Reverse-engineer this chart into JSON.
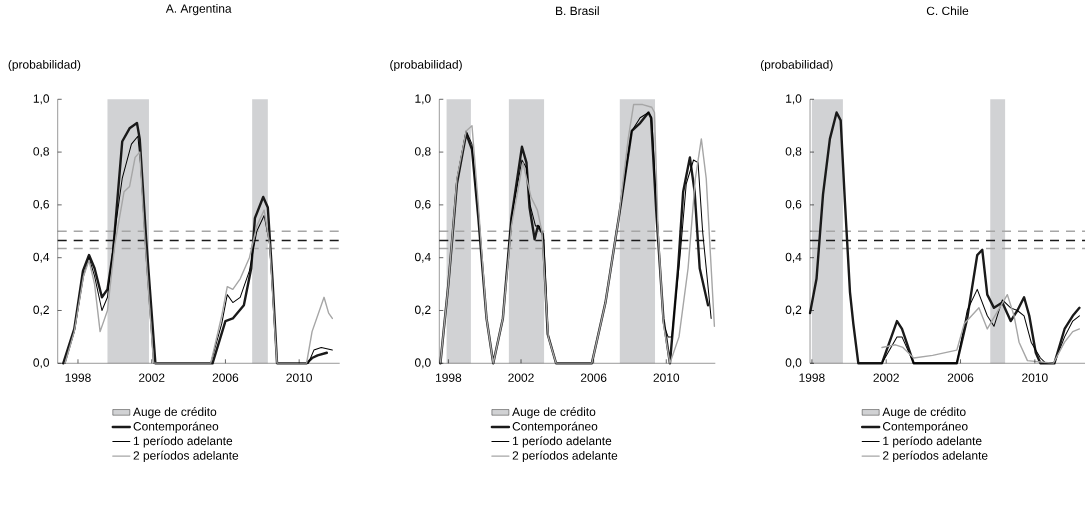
{
  "chart_data": [
    {
      "type": "line",
      "title": "A. Argentina",
      "ylabel": "(probabilidad)",
      "legend": "bottom",
      "xlim": [
        1996.9,
        2012.2
      ],
      "xticks": [
        1998,
        2002,
        2006,
        2010
      ],
      "ylim": [
        0,
        1
      ],
      "yticks": [
        {
          "value": 0,
          "label": "0,0"
        },
        {
          "value": 0.2,
          "label": "0,2"
        },
        {
          "value": 0.4,
          "label": "0,4"
        },
        {
          "value": 0.6,
          "label": "0,6"
        },
        {
          "value": 0.8,
          "label": "0,8"
        },
        {
          "value": 1,
          "label": "1,0"
        }
      ],
      "bands": [
        {
          "axis": "x",
          "from": 1999.6,
          "to": 2001.85,
          "label": "Auge de crédito",
          "color": "#d1d2d4"
        },
        {
          "axis": "x",
          "from": 2007.45,
          "to": 2008.3,
          "color": "#d1d2d4"
        }
      ],
      "ref_lines": [
        {
          "axis": "y",
          "value": 0.5,
          "color": "#a6a6a6",
          "line_style": "dashed"
        },
        {
          "axis": "y",
          "value": 0.465,
          "color": "#1a1a1a",
          "line_style": "dashed"
        },
        {
          "axis": "y",
          "value": 0.435,
          "color": "#a6a6a6",
          "line_style": "dashed"
        }
      ],
      "series": [
        {
          "name": "Contemporáneo",
          "color": "#1a1a1a",
          "x": [
            1997.2,
            1997.8,
            1998.27,
            1998.6,
            1998.9,
            1999.3,
            1999.6,
            1999.9,
            2000.4,
            2000.8,
            2001.2,
            2001.35,
            2001.7,
            2002.2,
            2003,
            2004,
            2005.3,
            2006.0,
            2006.4,
            2007.0,
            2007.4,
            2007.6,
            2008.05,
            2008.3,
            2008.55,
            2008.8,
            2009.5,
            2010.4,
            2010.7,
            2011.0,
            2011.5
          ],
          "values": [
            0,
            0.13,
            0.35,
            0.41,
            0.36,
            0.25,
            0.28,
            0.42,
            0.84,
            0.89,
            0.91,
            0.85,
            0.47,
            0,
            0,
            0,
            0,
            0.16,
            0.17,
            0.22,
            0.36,
            0.55,
            0.63,
            0.59,
            0.32,
            0,
            0,
            0,
            0.02,
            0.03,
            0.04
          ]
        },
        {
          "name": "1 período adelante",
          "color": "#000000",
          "x": [
            1997.3,
            1997.8,
            1998.3,
            1998.6,
            1998.9,
            1999.3,
            1999.6,
            2000.0,
            2000.4,
            2000.9,
            2001.25,
            2001.4,
            2001.7,
            2002.1,
            2005.2,
            2005.8,
            2006.1,
            2006.4,
            2006.8,
            2007.3,
            2007.7,
            2008.1,
            2008.4,
            2008.7,
            2008.8,
            2010.5,
            2010.8,
            2011.2,
            2011.8
          ],
          "values": [
            0,
            0.12,
            0.33,
            0.4,
            0.33,
            0.2,
            0.25,
            0.5,
            0.7,
            0.83,
            0.86,
            0.75,
            0.4,
            0,
            0,
            0.15,
            0.26,
            0.23,
            0.25,
            0.35,
            0.5,
            0.56,
            0.45,
            0.1,
            0,
            0,
            0.05,
            0.06,
            0.05
          ]
        },
        {
          "name": "2 períodos adelante",
          "color": "#a6a6a6",
          "x": [
            1997.3,
            1997.8,
            1998.3,
            1998.6,
            1998.9,
            1999.2,
            1999.6,
            2000.0,
            2000.5,
            2000.8,
            2001.1,
            2001.35,
            2001.6,
            2002.1,
            2005.2,
            2005.8,
            2006.1,
            2006.4,
            2006.8,
            2007.3,
            2007.7,
            2008.1,
            2008.4,
            2008.7,
            2008.8,
            2010.4,
            2010.7,
            2011.35,
            2011.6,
            2011.8
          ],
          "values": [
            0,
            0.12,
            0.33,
            0.39,
            0.3,
            0.12,
            0.2,
            0.45,
            0.65,
            0.67,
            0.78,
            0.8,
            0.5,
            0,
            0,
            0.18,
            0.29,
            0.28,
            0.32,
            0.4,
            0.52,
            0.58,
            0.45,
            0.1,
            0,
            0,
            0.12,
            0.25,
            0.19,
            0.17
          ]
        }
      ]
    },
    {
      "type": "line",
      "title": "B. Brasil",
      "ylabel": "(probabilidad)",
      "legend": "bottom",
      "xlim": [
        1997.5,
        2012.7
      ],
      "xticks": [
        1998,
        2002,
        2006,
        2010
      ],
      "ylim": [
        0,
        1
      ],
      "yticks": [
        {
          "value": 0,
          "label": "0,0"
        },
        {
          "value": 0.2,
          "label": "0,2"
        },
        {
          "value": 0.4,
          "label": "0,4"
        },
        {
          "value": 0.6,
          "label": "0,6"
        },
        {
          "value": 0.8,
          "label": "0,8"
        },
        {
          "value": 1,
          "label": "1,0"
        }
      ],
      "bands": [
        {
          "axis": "x",
          "from": 1997.9,
          "to": 1999.24,
          "label": "Auge de crédito",
          "color": "#d1d2d4"
        },
        {
          "axis": "x",
          "from": 2001.33,
          "to": 2003.27,
          "color": "#d1d2d4"
        },
        {
          "axis": "x",
          "from": 2007.44,
          "to": 2009.38,
          "color": "#d1d2d4"
        }
      ],
      "ref_lines": [
        {
          "axis": "y",
          "value": 0.5,
          "color": "#a6a6a6",
          "line_style": "dashed"
        },
        {
          "axis": "y",
          "value": 0.465,
          "color": "#1a1a1a",
          "line_style": "dashed"
        },
        {
          "axis": "y",
          "value": 0.435,
          "color": "#a6a6a6",
          "line_style": "dashed"
        }
      ],
      "series": [
        {
          "name": "Contemporáneo",
          "color": "#1a1a1a",
          "x": [
            1997.56,
            1998.0,
            1998.47,
            1998.98,
            1999.3,
            1999.65,
            2000.1,
            2000.47,
            2001.0,
            2001.47,
            2002.05,
            2002.3,
            2002.47,
            2002.75,
            2002.93,
            2003.2,
            2003.47,
            2003.93,
            2005.9,
            2006.65,
            2007.38,
            2008.1,
            2008.56,
            2009.02,
            2009.16,
            2009.47,
            2009.84,
            2010.2,
            2010.65,
            2010.93,
            2011.3,
            2011.56,
            2011.84,
            2012.3
          ],
          "values": [
            0,
            0.3,
            0.68,
            0.87,
            0.81,
            0.55,
            0.17,
            0,
            0.17,
            0.55,
            0.82,
            0.76,
            0.59,
            0.47,
            0.52,
            0.49,
            0.11,
            0,
            0,
            0.23,
            0.55,
            0.88,
            0.91,
            0.95,
            0.93,
            0.55,
            0.17,
            0,
            0.36,
            0.65,
            0.78,
            0.65,
            0.36,
            0.22
          ]
        },
        {
          "name": "1 período adelante",
          "color": "#000000",
          "x": [
            1997.56,
            1998.0,
            1998.47,
            1998.98,
            1999.3,
            1999.65,
            2000.1,
            2000.47,
            2001.0,
            2001.47,
            2002.05,
            2002.3,
            2002.5,
            2002.8,
            2003.0,
            2003.25,
            2003.5,
            2003.93,
            2005.9,
            2006.65,
            2007.38,
            2008.1,
            2008.56,
            2009.02,
            2009.2,
            2009.5,
            2009.84,
            2010.1,
            2010.3,
            2010.75,
            2011.1,
            2011.5,
            2011.75,
            2012.0,
            2012.47
          ],
          "values": [
            0,
            0.3,
            0.7,
            0.88,
            0.83,
            0.57,
            0.17,
            0,
            0.17,
            0.55,
            0.77,
            0.74,
            0.6,
            0.52,
            0.52,
            0.47,
            0.1,
            0,
            0,
            0.23,
            0.55,
            0.88,
            0.93,
            0.95,
            0.93,
            0.55,
            0.15,
            0.1,
            0.1,
            0.4,
            0.68,
            0.77,
            0.76,
            0.5,
            0.17
          ]
        },
        {
          "name": "2 períodos adelante",
          "color": "#a6a6a6",
          "x": [
            1997.56,
            1998.0,
            1998.47,
            1998.98,
            1999.3,
            1999.65,
            2000.1,
            2000.47,
            2001.0,
            2001.47,
            2002.1,
            2002.55,
            2002.9,
            2003.15,
            2003.5,
            2003.93,
            2005.9,
            2006.65,
            2007.38,
            2007.9,
            2008.2,
            2008.7,
            2009.2,
            2009.35,
            2009.55,
            2009.84,
            2010.2,
            2010.7,
            2011.2,
            2011.6,
            2011.93,
            2012.2,
            2012.65
          ],
          "values": [
            0,
            0.3,
            0.7,
            0.88,
            0.9,
            0.6,
            0.17,
            0,
            0.17,
            0.52,
            0.76,
            0.63,
            0.58,
            0.5,
            0.1,
            0,
            0,
            0.23,
            0.55,
            0.85,
            0.98,
            0.98,
            0.97,
            0.95,
            0.5,
            0.15,
            0,
            0.1,
            0.36,
            0.7,
            0.85,
            0.7,
            0.14
          ]
        }
      ]
    },
    {
      "type": "line",
      "title": "C. Chile",
      "ylabel": "(probabilidad)",
      "legend": "bottom",
      "xlim": [
        1997.9,
        2012.7
      ],
      "xticks": [
        1998,
        2002,
        2006,
        2010
      ],
      "ylim": [
        0,
        1
      ],
      "yticks": [
        {
          "value": 0,
          "label": "0,0"
        },
        {
          "value": 0.2,
          "label": "0,2"
        },
        {
          "value": 0.4,
          "label": "0,4"
        },
        {
          "value": 0.6,
          "label": "0,6"
        },
        {
          "value": 0.8,
          "label": "0,8"
        },
        {
          "value": 1,
          "label": "1,0"
        }
      ],
      "bands": [
        {
          "axis": "x",
          "from": 1998.0,
          "to": 1999.67,
          "label": "Auge de crédito",
          "color": "#d1d2d4"
        },
        {
          "axis": "x",
          "from": 2007.6,
          "to": 2008.4,
          "color": "#d1d2d4"
        }
      ],
      "ref_lines": [
        {
          "axis": "y",
          "value": 0.5,
          "color": "#a6a6a6",
          "line_style": "dashed"
        },
        {
          "axis": "y",
          "value": 0.465,
          "color": "#1a1a1a",
          "line_style": "dashed"
        },
        {
          "axis": "y",
          "value": 0.435,
          "color": "#a6a6a6",
          "line_style": "dashed"
        }
      ],
      "series": [
        {
          "name": "Contemporáneo",
          "color": "#1a1a1a",
          "x": [
            1997.9,
            1998.25,
            1998.6,
            1998.97,
            1999.33,
            1999.55,
            1999.78,
            2000.05,
            2000.23,
            2000.5,
            2001.77,
            2002.58,
            2002.85,
            2003.48,
            2005.8,
            2006.36,
            2006.9,
            2007.17,
            2007.44,
            2007.8,
            2008.25,
            2008.7,
            2009.06,
            2009.42,
            2009.7,
            2010.05,
            2010.3,
            2011.05,
            2011.6,
            2012.04,
            2012.4
          ],
          "values": [
            0.19,
            0.32,
            0.64,
            0.85,
            0.95,
            0.92,
            0.61,
            0.27,
            0.15,
            0,
            0,
            0.16,
            0.13,
            0,
            0,
            0.17,
            0.41,
            0.43,
            0.26,
            0.21,
            0.23,
            0.16,
            0.2,
            0.25,
            0.18,
            0.04,
            0,
            0,
            0.13,
            0.18,
            0.21
          ]
        },
        {
          "name": "1 período adelante",
          "color": "#000000",
          "x": [
            2001.77,
            2002.58,
            2002.85,
            2003.48,
            2005.8,
            2006.36,
            2006.9,
            2007.44,
            2007.8,
            2008.25,
            2008.7,
            2009.06,
            2009.42,
            2009.8,
            2010.3,
            2010.6,
            2011.05,
            2011.6,
            2012.04,
            2012.4
          ],
          "values": [
            0,
            0.1,
            0.1,
            0,
            0,
            0.2,
            0.28,
            0.18,
            0.14,
            0.24,
            0.21,
            0.2,
            0.18,
            0.08,
            0.02,
            0,
            0,
            0.1,
            0.16,
            0.18
          ]
        },
        {
          "name": "2 períodos adelante",
          "color": "#a6a6a6",
          "x": [
            2001.77,
            2002.5,
            2002.9,
            2003.48,
            2004.5,
            2005.8,
            2006.2,
            2006.99,
            2007.44,
            2008.52,
            2008.88,
            2009.15,
            2009.6,
            2011.0,
            2011.6,
            2012.04,
            2012.4
          ],
          "values": [
            0.06,
            0.07,
            0.06,
            0.02,
            0.03,
            0.05,
            0.15,
            0.21,
            0.13,
            0.26,
            0.18,
            0.08,
            0.01,
            0,
            0.08,
            0.12,
            0.13
          ]
        }
      ]
    }
  ]
}
